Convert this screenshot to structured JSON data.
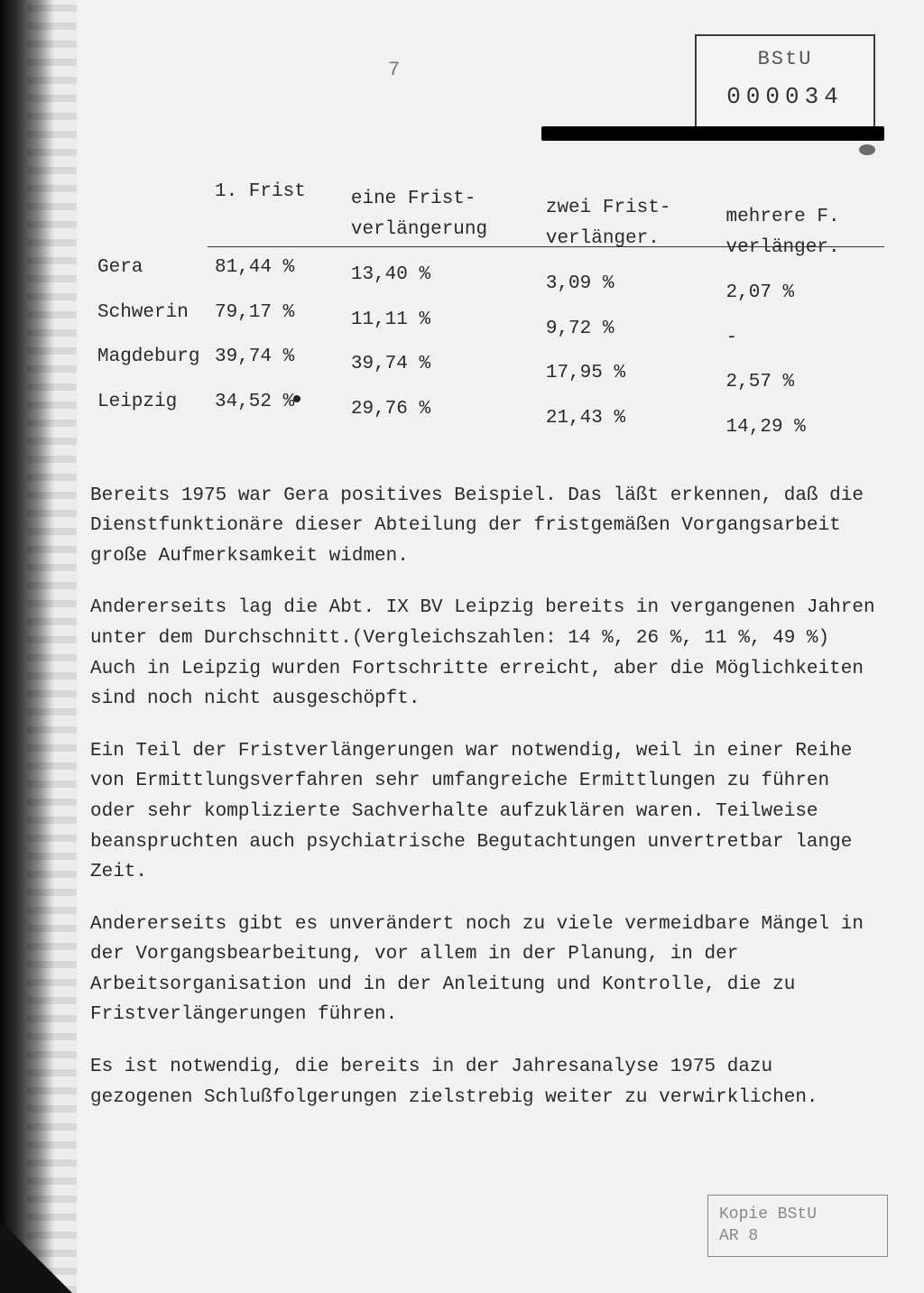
{
  "page_number": "7",
  "stamp_top": {
    "line1": "BStU",
    "line2": "000034"
  },
  "table": {
    "type": "table",
    "background_color": "#f2f2f0",
    "text_color": "#2a2a2a",
    "font_family": "Courier New",
    "font_size_pt": 16,
    "col_widths_pct": [
      16,
      20,
      24,
      22,
      18
    ],
    "headers": [
      "",
      "1. Frist",
      "eine Frist-\nverlängerung",
      "zwei Frist-\nverlänger.",
      "mehrere F.\nverlänger."
    ],
    "rows": [
      {
        "city": "Gera",
        "c1": "81,44 %",
        "c2": "13,40 %",
        "c3": "3,09 %",
        "c4": "2,07 %"
      },
      {
        "city": "Schwerin",
        "c1": "79,17 %",
        "c2": "11,11 %",
        "c3": "9,72 %",
        "c4": "-"
      },
      {
        "city": "Magdeburg",
        "c1": "39,74 %",
        "c2": "39,74 %",
        "c3": "17,95 %",
        "c4": "2,57 %"
      },
      {
        "city": "Leipzig",
        "c1": "34,52 %",
        "c2": "29,76 %",
        "c3": "21,43 %",
        "c4": "14,29 %"
      }
    ]
  },
  "paragraphs": {
    "p1": "Bereits 1975 war Gera positives Beispiel. Das läßt erkennen, daß die Dienstfunktionäre dieser Abteilung der fristgemäßen Vorgangsarbeit große Aufmerksamkeit widmen.",
    "p2": "Andererseits lag die Abt. IX BV Leipzig bereits in vergangenen Jahren unter dem Durchschnitt.(Vergleichszahlen: 14 %, 26 %, 11 %, 49 %)  Auch in Leipzig wurden Fortschritte erreicht, aber die Möglichkeiten sind noch nicht ausgeschöpft.",
    "p3": "Ein Teil der Fristverlängerungen war notwendig, weil in einer Reihe von Ermittlungsverfahren sehr umfangreiche Ermittlungen zu führen oder sehr komplizierte Sachverhalte aufzuklären waren. Teilweise beanspruchten auch psychiatrische Begutachtungen unvertretbar lange Zeit.",
    "p4": "Andererseits gibt es unverändert noch zu viele vermeidbare Mängel in der Vorgangsbearbeitung, vor allem in der Planung, in der Arbeitsorganisation und in der Anleitung und Kontrolle, die zu Fristverlängerungen führen.",
    "p5": "Es ist notwendig, die bereits in der Jahresanalyse 1975 dazu gezogenen Schlußfolgerungen zielstrebig weiter zu verwirklichen."
  },
  "stamp_bottom": {
    "line1": "Kopie BStU",
    "line2": "AR 8"
  },
  "colors": {
    "paper": "#f2f2f0",
    "ink": "#2a2a2a",
    "faint": "#888888",
    "black_bar": "#000000",
    "stamp_border": "#3a3a3a"
  }
}
